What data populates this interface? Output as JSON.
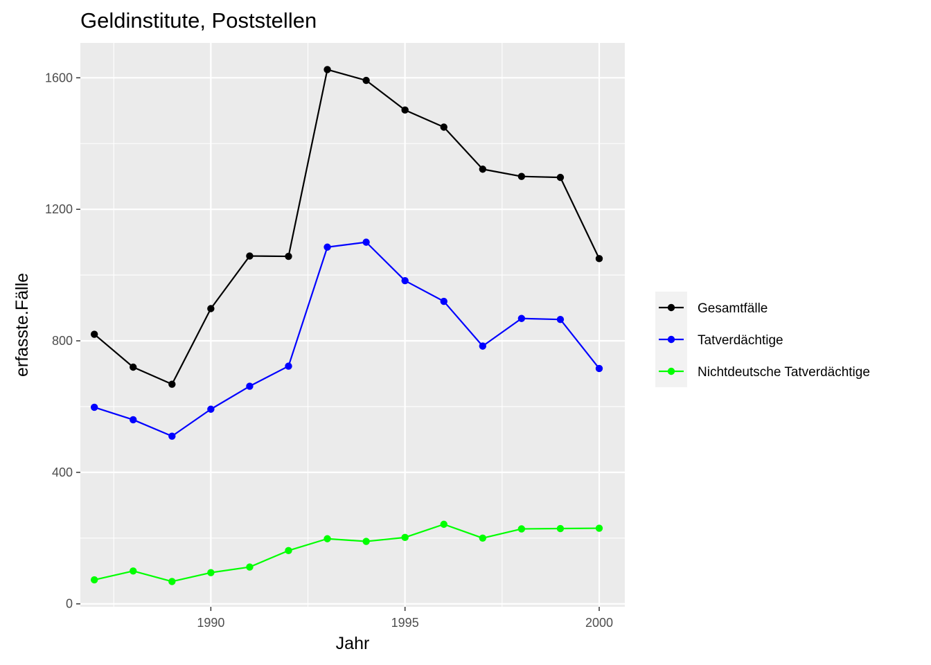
{
  "chart_data": {
    "type": "line",
    "title": "Geldinstitute, Poststellen",
    "xlabel": "Jahr",
    "ylabel": "erfasste.Fälle",
    "x": [
      1987,
      1988,
      1989,
      1990,
      1991,
      1992,
      1993,
      1994,
      1995,
      1996,
      1997,
      1998,
      1999,
      2000
    ],
    "series": [
      {
        "name": "Gesamtfälle",
        "color": "#000000",
        "values": [
          820,
          720,
          668,
          898,
          1058,
          1057,
          1625,
          1592,
          1502,
          1450,
          1322,
          1300,
          1297,
          1050
        ]
      },
      {
        "name": "Tatverdächtige",
        "color": "#0000ff",
        "values": [
          598,
          560,
          510,
          592,
          662,
          723,
          1085,
          1100,
          983,
          920,
          784,
          868,
          865,
          716
        ]
      },
      {
        "name": "Nichtdeutsche Tatverdächtige",
        "color": "#00ff00",
        "values": [
          73,
          100,
          68,
          95,
          112,
          162,
          198,
          190,
          202,
          242,
          200,
          228,
          229,
          230
        ]
      }
    ],
    "xlim": [
      1986.64,
      2000.66
    ],
    "ylim": [
      -9,
      1706
    ],
    "x_ticks": [
      "1990",
      "1995",
      "2000"
    ],
    "y_ticks": [
      "0",
      "400",
      "800",
      "1200",
      "1600"
    ],
    "grid": true,
    "legend_position": "right",
    "panel_background": "#ebebeb"
  }
}
